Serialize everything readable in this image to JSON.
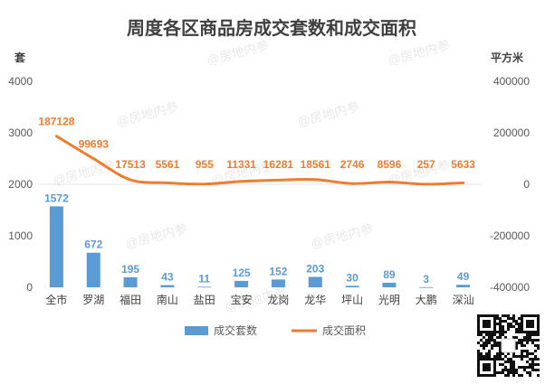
{
  "watermark": "@房地内参",
  "chart_data": {
    "type": "bar",
    "title": "周度各区商品房成交套数和成交面积",
    "categories": [
      "全市",
      "罗湖",
      "福田",
      "南山",
      "盐田",
      "宝安",
      "龙岗",
      "龙华",
      "坪山",
      "光明",
      "大鹏",
      "深汕"
    ],
    "y_left": {
      "label": "套",
      "ylim": [
        0,
        4000
      ],
      "ticks": [
        0,
        1000,
        2000,
        3000,
        4000
      ]
    },
    "y_right": {
      "label": "平方米",
      "ylim": [
        -400000,
        400000
      ],
      "ticks": [
        -400000,
        -200000,
        0,
        200000,
        400000
      ]
    },
    "series": [
      {
        "name": "成交套数",
        "type": "bar",
        "axis": "left",
        "color": "#5B9BD5",
        "values": [
          1572,
          672,
          195,
          43,
          11,
          125,
          152,
          203,
          30,
          89,
          3,
          49
        ]
      },
      {
        "name": "成交面积",
        "type": "line",
        "axis": "right",
        "color": "#ED7D31",
        "values": [
          187128,
          99693,
          17513,
          5561,
          955,
          11331,
          16281,
          18561,
          2746,
          8596,
          257,
          5633
        ]
      }
    ],
    "legend_position": "bottom",
    "grid": false
  }
}
